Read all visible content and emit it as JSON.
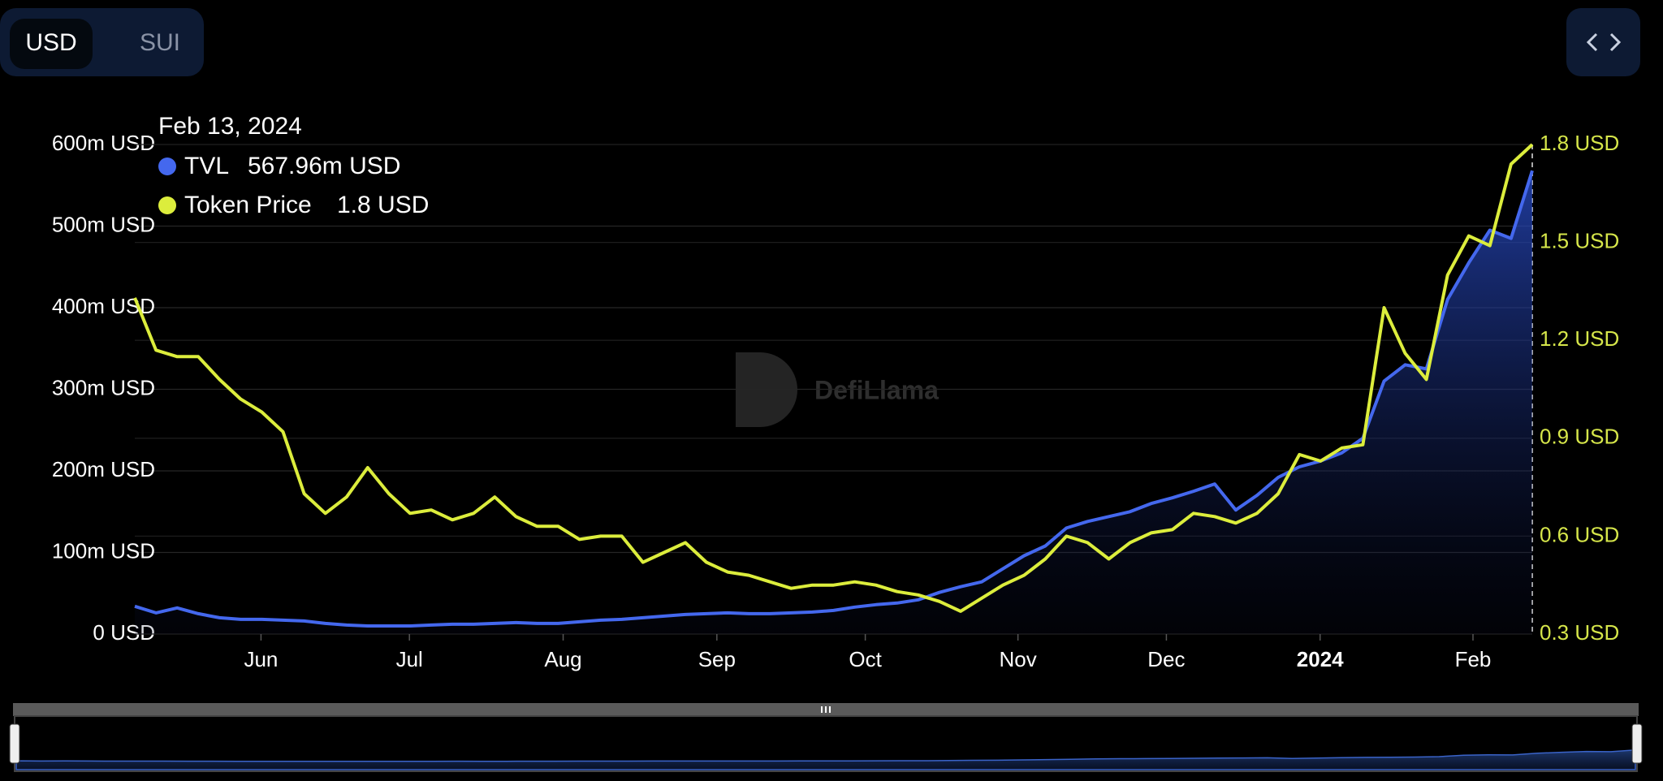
{
  "controls": {
    "currencies": [
      "USD",
      "SUI"
    ],
    "active": 0
  },
  "chart_data": {
    "type": "line",
    "watermark": "DefiLlama",
    "tooltip": {
      "title": "Feb 13, 2024",
      "values": [
        "567.96m USD",
        "1.8 USD"
      ]
    },
    "xlim": [
      0,
      66
    ],
    "xticks": [
      {
        "value": 5.96,
        "label": "Jun"
      },
      {
        "value": 12.97,
        "label": "Jul"
      },
      {
        "value": 20.23,
        "label": "Aug"
      },
      {
        "value": 27.49,
        "label": "Sep"
      },
      {
        "value": 34.5,
        "label": "Oct"
      },
      {
        "value": 41.71,
        "label": "Nov"
      },
      {
        "value": 48.72,
        "label": "Dec"
      },
      {
        "value": 55.98,
        "label": "2024"
      },
      {
        "value": 63.2,
        "label": "Feb"
      }
    ],
    "ylim": [
      0,
      600
    ],
    "yticks": [
      {
        "value": 0,
        "label": "0 USD"
      },
      {
        "value": 100,
        "label": "100m USD"
      },
      {
        "value": 200,
        "label": "200m USD"
      },
      {
        "value": 300,
        "label": "300m USD"
      },
      {
        "value": 400,
        "label": "400m USD"
      },
      {
        "value": 500,
        "label": "500m USD"
      },
      {
        "value": 600,
        "label": "600m USD"
      }
    ],
    "y2lim": [
      0.3,
      1.8
    ],
    "y2ticks": [
      {
        "value": 0.3,
        "label": "0.3 USD"
      },
      {
        "value": 0.6,
        "label": "0.6 USD"
      },
      {
        "value": 0.9,
        "label": "0.9 USD"
      },
      {
        "value": 1.2,
        "label": "1.2 USD"
      },
      {
        "value": 1.5,
        "label": "1.5 USD"
      },
      {
        "value": 1.8,
        "label": "1.8 USD"
      }
    ],
    "grid": true,
    "series": [
      {
        "name": "TVL",
        "color": "#4468ee",
        "area": true,
        "values": [
          34,
          26,
          32,
          25,
          20,
          18,
          18,
          17,
          16,
          13,
          11,
          10,
          10,
          10,
          11,
          12,
          12,
          13,
          14,
          13,
          13,
          15,
          17,
          18,
          20,
          22,
          24,
          25,
          26,
          25,
          25,
          26,
          27,
          29,
          33,
          36,
          38,
          42,
          51,
          58,
          64,
          80,
          96,
          108,
          130,
          138,
          144,
          150,
          160,
          167,
          175,
          184,
          152,
          170,
          192,
          205,
          212,
          222,
          240,
          310,
          330,
          325,
          410,
          455,
          495,
          485,
          567.96
        ]
      },
      {
        "name": "Token Price",
        "color": "#dced3c",
        "axis": "y2",
        "values": [
          1.33,
          1.17,
          1.15,
          1.15,
          1.08,
          1.02,
          0.98,
          0.92,
          0.73,
          0.67,
          0.72,
          0.81,
          0.73,
          0.67,
          0.68,
          0.65,
          0.67,
          0.72,
          0.66,
          0.63,
          0.63,
          0.59,
          0.6,
          0.6,
          0.52,
          0.55,
          0.58,
          0.52,
          0.49,
          0.48,
          0.46,
          0.44,
          0.45,
          0.45,
          0.46,
          0.45,
          0.43,
          0.42,
          0.4,
          0.37,
          0.41,
          0.45,
          0.48,
          0.53,
          0.6,
          0.58,
          0.53,
          0.58,
          0.61,
          0.62,
          0.67,
          0.66,
          0.64,
          0.67,
          0.73,
          0.85,
          0.83,
          0.87,
          0.88,
          1.3,
          1.16,
          1.08,
          1.4,
          1.52,
          1.49,
          1.74,
          1.8
        ]
      }
    ]
  }
}
